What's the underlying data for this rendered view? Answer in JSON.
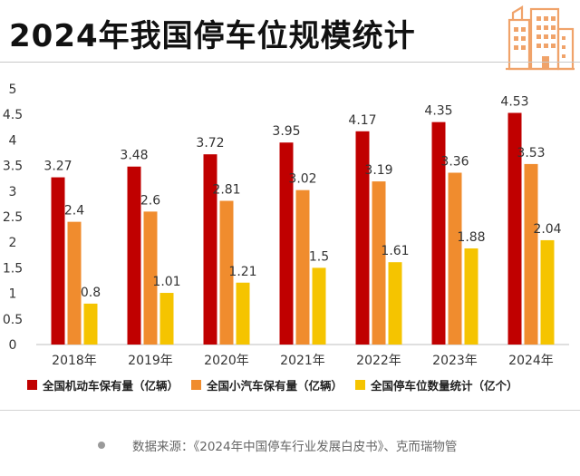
{
  "title": "2024年我国停车位规模统计",
  "source_text": "数据来源：《2024年中国停车行业发展白皮书》、克而瑞物管",
  "icon": "building-icon",
  "colors": {
    "motor": "#c00000",
    "car": "#f08c2e",
    "parking": "#f5c400"
  },
  "chart_data": {
    "type": "bar",
    "categories": [
      "2018年",
      "2019年",
      "2020年",
      "2021年",
      "2022年",
      "2023年",
      "2024年"
    ],
    "series": [
      {
        "name": "全国机动车保有量（亿辆）",
        "values": [
          3.27,
          3.48,
          3.72,
          3.95,
          4.17,
          4.35,
          4.53
        ]
      },
      {
        "name": "全国小汽车保有量（亿辆）",
        "values": [
          2.4,
          2.6,
          2.81,
          3.02,
          3.19,
          3.36,
          3.53
        ]
      },
      {
        "name": "全国停车位数量统计（亿个）",
        "values": [
          0.8,
          1.01,
          1.21,
          1.5,
          1.61,
          1.88,
          2.04
        ]
      }
    ],
    "yticks": [
      "0",
      "0.5",
      "1",
      "1.5",
      "2",
      "2.5",
      "3",
      "3.5",
      "4",
      "4.5",
      "5"
    ],
    "ylim": [
      0,
      5
    ],
    "grid": false,
    "legend_position": "bottom"
  }
}
